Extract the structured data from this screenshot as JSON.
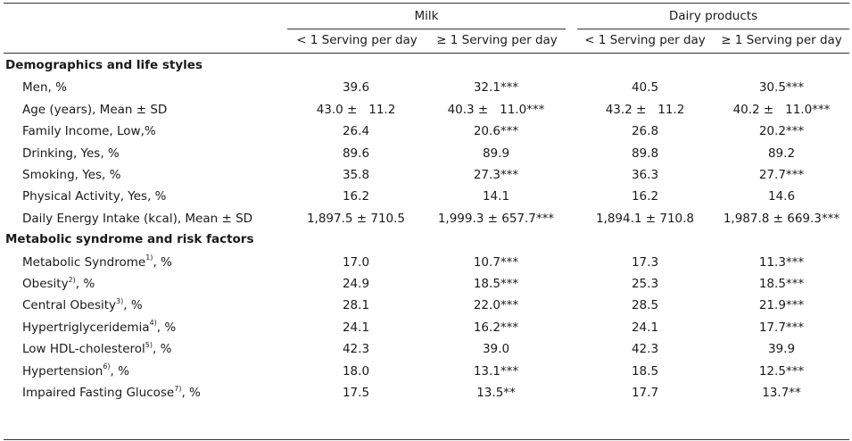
{
  "header": {
    "groups": [
      "Milk",
      "Dairy products"
    ],
    "subheaders": [
      "< 1 Serving per day",
      "≥ 1 Serving per day",
      "< 1 Serving per day",
      "≥ 1 Serving per day"
    ]
  },
  "sections": [
    {
      "title": "Demographics and life styles",
      "rows": [
        {
          "label": "Men, %",
          "sup": "",
          "suffix": "",
          "values": [
            "39.6",
            "32.1***",
            "40.5",
            "30.5***"
          ]
        },
        {
          "label": "Age (years), Mean ± SD",
          "sup": "",
          "suffix": "",
          "values": [
            "43.0 ±   11.2",
            "40.3 ±   11.0***",
            "43.2 ±   11.2",
            "40.2 ±   11.0***"
          ]
        },
        {
          "label": "Family Income, Low,%",
          "sup": "",
          "suffix": "",
          "values": [
            "26.4",
            "20.6***",
            "26.8",
            "20.2***"
          ]
        },
        {
          "label": "Drinking, Yes, %",
          "sup": "",
          "suffix": "",
          "values": [
            "89.6",
            "89.9",
            "89.8",
            "89.2"
          ]
        },
        {
          "label": "Smoking, Yes, %",
          "sup": "",
          "suffix": "",
          "values": [
            "35.8",
            "27.3***",
            "36.3",
            "27.7***"
          ]
        },
        {
          "label": "Physical Activity, Yes, %",
          "sup": "",
          "suffix": "",
          "values": [
            "16.2",
            "14.1",
            "16.2",
            "14.6"
          ]
        },
        {
          "label": "Daily Energy Intake (kcal), Mean ± SD",
          "sup": "",
          "suffix": "",
          "values": [
            "1,897.5 ± 710.5",
            "1,999.3 ± 657.7***",
            "1,894.1 ± 710.8",
            "1,987.8 ± 669.3***"
          ]
        }
      ]
    },
    {
      "title": "Metabolic syndrome and risk factors",
      "rows": [
        {
          "label": "Metabolic Syndrome",
          "sup": "1)",
          "suffix": ", %",
          "values": [
            "17.0",
            "10.7***",
            "17.3",
            "11.3***"
          ]
        },
        {
          "label": "Obesity",
          "sup": "2)",
          "suffix": ", %",
          "values": [
            "24.9",
            "18.5***",
            "25.3",
            "18.5***"
          ]
        },
        {
          "label": "Central Obesity",
          "sup": "3)",
          "suffix": ", %",
          "values": [
            "28.1",
            "22.0***",
            "28.5",
            "21.9***"
          ]
        },
        {
          "label": "Hypertriglyceridemia",
          "sup": "4)",
          "suffix": ", %",
          "values": [
            "24.1",
            "16.2***",
            "24.1",
            "17.7***"
          ]
        },
        {
          "label": "Low HDL-cholesterol",
          "sup": "5)",
          "suffix": ", %",
          "values": [
            "42.3",
            "39.0",
            "42.3",
            "39.9"
          ]
        },
        {
          "label": "Hypertension",
          "sup": "6)",
          "suffix": ", %",
          "values": [
            "18.0",
            "13.1***",
            "18.5",
            "12.5***"
          ]
        },
        {
          "label": "Impaired Fasting Glucose",
          "sup": "7)",
          "suffix": ", %",
          "values": [
            "17.5",
            "13.5**",
            "17.7",
            "13.7**"
          ]
        }
      ]
    }
  ]
}
